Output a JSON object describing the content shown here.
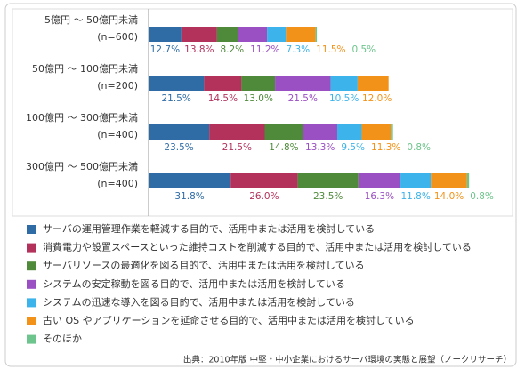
{
  "chart_data": {
    "type": "stacked-bar-horizontal",
    "categories": [
      "5億円 ～ 50億円未満\n(n=600)",
      "50億円 ～ 100億円未満\n(n=200)",
      "100億円 ～ 300億円未満\n(n=400)",
      "300億円 ～ 500億円未満\n(n=400)"
    ],
    "series": [
      {
        "name": "サーバの運用管理作業を軽減する目的で、活用中または活用を検討している",
        "color": "#2f6ca6",
        "values": [
          12.7,
          21.5,
          23.5,
          31.8
        ],
        "value_labels": [
          "12.7%",
          "21.5%",
          "23.5%",
          "31.8%"
        ]
      },
      {
        "name": "消費電力や設置スペースといった維持コストを削減する目的で、活用中または活用を検討している",
        "color": "#b3325c",
        "values": [
          13.8,
          14.5,
          21.5,
          26.0
        ],
        "value_labels": [
          "13.8%",
          "14.5%",
          "21.5%",
          "26.0%"
        ]
      },
      {
        "name": "サーバリソースの最適化を図る目的で、活用中または活用を検討している",
        "color": "#4f8a3b",
        "values": [
          8.2,
          13.0,
          14.8,
          23.5
        ],
        "value_labels": [
          "8.2%",
          "13.0%",
          "14.8%",
          "23.5%"
        ]
      },
      {
        "name": "システムの安定稼動を図る目的で、活用中または活用を検討している",
        "color": "#9a4fc3",
        "values": [
          11.2,
          21.5,
          13.3,
          16.3
        ],
        "value_labels": [
          "11.2%",
          "21.5%",
          "13.3%",
          "16.3%"
        ]
      },
      {
        "name": "システムの迅速な導入を図る目的で、活用中または活用を検討している",
        "color": "#3cb3ea",
        "values": [
          7.3,
          10.5,
          9.5,
          11.8
        ],
        "value_labels": [
          "7.3%",
          "10.5%",
          "9.5%",
          "11.8%"
        ]
      },
      {
        "name": "古い OS やアプリケーションを延命させる目的で、活用中または活用を検討している",
        "color": "#f39218",
        "values": [
          11.5,
          12.0,
          11.3,
          14.0
        ],
        "value_labels": [
          "11.5%",
          "12.0%",
          "11.3%",
          "14.0%"
        ]
      },
      {
        "name": "そのほか",
        "color": "#6dc48c",
        "values": [
          0.5,
          null,
          0.8,
          0.8
        ],
        "value_labels": [
          "0.5%",
          null,
          "0.8%",
          "0.8%"
        ]
      }
    ],
    "source": "出典：2010年版 中堅・中小企業におけるサーバ環境の実態と展望（ノークリサーチ）"
  }
}
